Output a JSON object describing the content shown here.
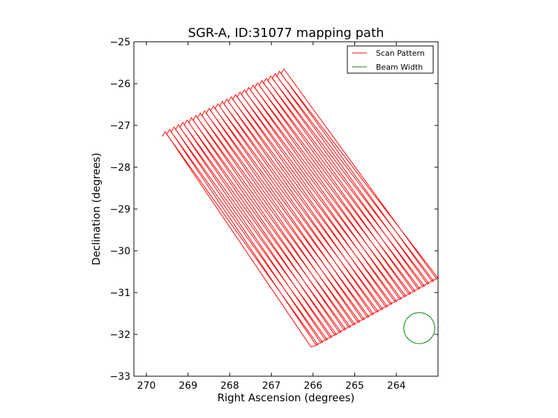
{
  "chart_data": {
    "type": "line",
    "title": "SGR-A, ID:31077 mapping path",
    "xlabel": "Right Ascension (degrees)",
    "ylabel": "Declination (degrees)",
    "xlim": [
      270.3,
      263.0
    ],
    "ylim": [
      -33,
      -25
    ],
    "x_inverted": true,
    "xticks": [
      270,
      269,
      268,
      267,
      266,
      265,
      264
    ],
    "yticks": [
      -25,
      -26,
      -27,
      -28,
      -29,
      -30,
      -31,
      -32,
      -33
    ],
    "xtick_labels": [
      "270",
      "269",
      "268",
      "267",
      "266",
      "265",
      "264"
    ],
    "ytick_labels": [
      "−25",
      "−26",
      "−27",
      "−28",
      "−29",
      "−30",
      "−31",
      "−32",
      "−33"
    ],
    "grid": false,
    "legend": {
      "placement": "top-right",
      "entries": [
        "Scan Pattern",
        "Beam Width"
      ]
    },
    "series": [
      {
        "name": "Scan Pattern",
        "color": "#ff0000",
        "scan_lines": {
          "count": 28,
          "first_start": [
            269.55,
            -27.15
          ],
          "first_end": [
            266.05,
            -32.3
          ],
          "last_start": [
            266.7,
            -25.65
          ],
          "last_end": [
            263.05,
            -30.65
          ]
        }
      },
      {
        "name": "Beam Width",
        "color": "#008000",
        "circle": {
          "center": [
            263.45,
            -31.85
          ],
          "radius_dec": 0.37
        }
      }
    ]
  }
}
